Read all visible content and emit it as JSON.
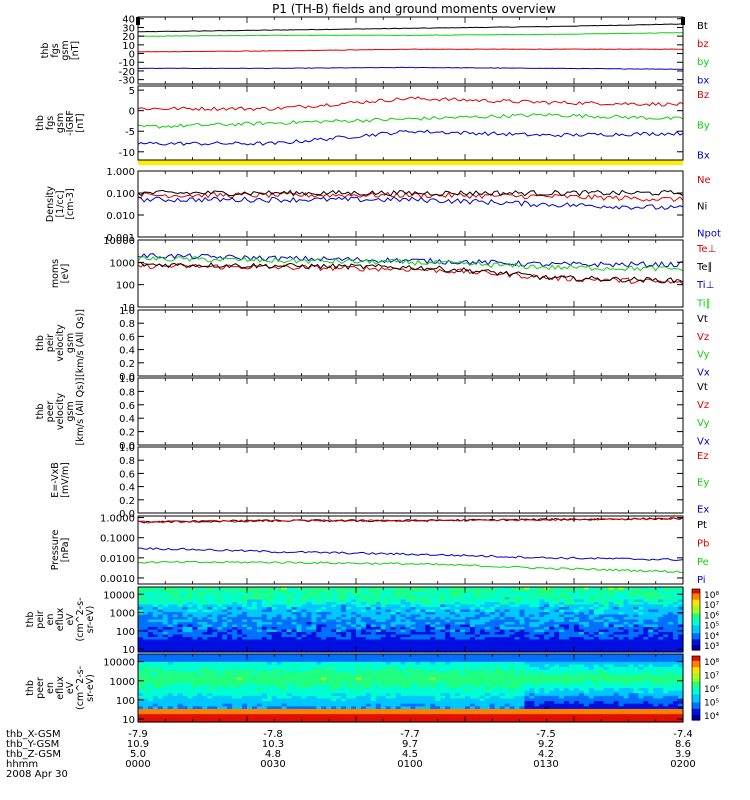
{
  "title": "P1 (TH-B) fields and ground moments overview",
  "colors": {
    "black": "#000000",
    "red": "#e00000",
    "green": "#10d010",
    "blue": "#0000cc",
    "yellow": "#ffee00"
  },
  "panels": [
    {
      "id": "fgs-gsm",
      "ylabel": [
        "thb",
        "fgs",
        "gsm",
        "[nT]"
      ],
      "type": "line",
      "scale": "linear",
      "ylim": [
        -35,
        42
      ],
      "ticks": [
        "40",
        "30",
        "20",
        "10",
        "0",
        "-10",
        "-20",
        "-30"
      ],
      "tick_values": [
        40,
        30,
        20,
        10,
        0,
        -10,
        -20,
        -30
      ],
      "legend": [
        {
          "text": "Bt",
          "color": "black"
        },
        {
          "text": "bz",
          "color": "red"
        },
        {
          "text": "by",
          "color": "green"
        },
        {
          "text": "bx",
          "color": "blue"
        }
      ]
    },
    {
      "id": "fgs-gsm-dif",
      "ylabel": [
        "thb",
        "fgs",
        "gsm",
        "-IGRF",
        "[nT]"
      ],
      "type": "line",
      "scale": "linear",
      "ylim": [
        -12,
        6
      ],
      "ticks": [
        "5",
        "0",
        "-5",
        "-10"
      ],
      "tick_values": [
        5,
        0,
        -5,
        -10
      ],
      "legend": [
        {
          "text": "Bz",
          "color": "red"
        },
        {
          "text": "By",
          "color": "green"
        },
        {
          "text": "Bx",
          "color": "blue"
        }
      ]
    },
    {
      "id": "density",
      "ylabel": [
        "Density",
        "[1/cc]",
        "[cm-3]"
      ],
      "type": "line",
      "scale": "log",
      "ylim": [
        0.001,
        1.0
      ],
      "ticks": [
        "1.000",
        "0.100",
        "0.010",
        "0.001"
      ],
      "tick_values": [
        1.0,
        0.1,
        0.01,
        0.001
      ],
      "legend": [
        {
          "text": "Ne",
          "color": "red"
        },
        {
          "text": "Ni",
          "color": "black"
        },
        {
          "text": "Npot",
          "color": "blue"
        }
      ]
    },
    {
      "id": "temp",
      "ylabel": [
        "moms",
        "[eV]"
      ],
      "type": "line",
      "scale": "log",
      "ylim": [
        10,
        10000
      ],
      "ticks": [
        "10000",
        "1000",
        "100",
        "10"
      ],
      "tick_values": [
        10000,
        1000,
        100,
        10
      ],
      "legend": [
        {
          "text": "Te⊥",
          "color": "red"
        },
        {
          "text": "Te∥",
          "color": "black"
        },
        {
          "text": "Ti⊥",
          "color": "blue"
        },
        {
          "text": "Ti∥",
          "color": "green"
        }
      ]
    },
    {
      "id": "peir-vel",
      "ylabel": [
        "thb",
        "peir",
        "velocity",
        "gsm",
        "[km/s (All Qs)]"
      ],
      "type": "empty",
      "scale": "linear",
      "ylim": [
        0,
        1
      ],
      "ticks": [
        "1.0",
        "0.8",
        "0.6",
        "0.4",
        "0.2",
        "0.0"
      ],
      "tick_values": [
        1.0,
        0.8,
        0.6,
        0.4,
        0.2,
        0.0
      ],
      "legend": [
        {
          "text": "Vt",
          "color": "black"
        },
        {
          "text": "Vz",
          "color": "red"
        },
        {
          "text": "Vy",
          "color": "green"
        },
        {
          "text": "Vx",
          "color": "blue"
        }
      ]
    },
    {
      "id": "peer-vel",
      "ylabel": [
        "thb",
        "peer",
        "velocity",
        "gsm",
        "[km/s (All Qs)]"
      ],
      "type": "empty",
      "scale": "linear",
      "ylim": [
        0,
        1
      ],
      "ticks": [
        "1.0",
        "0.8",
        "0.6",
        "0.4",
        "0.2",
        "0.0"
      ],
      "tick_values": [
        1.0,
        0.8,
        0.6,
        0.4,
        0.2,
        0.0
      ],
      "legend": [
        {
          "text": "Vt",
          "color": "black"
        },
        {
          "text": "Vz",
          "color": "red"
        },
        {
          "text": "Vy",
          "color": "green"
        },
        {
          "text": "Vx",
          "color": "blue"
        }
      ]
    },
    {
      "id": "evxb",
      "ylabel": [
        "E=-VxB",
        "[mV/m]"
      ],
      "type": "empty",
      "scale": "linear",
      "ylim": [
        0,
        1
      ],
      "ticks": [
        "1.0",
        "0.8",
        "0.6",
        "0.4",
        "0.2",
        "0.0"
      ],
      "tick_values": [
        1.0,
        0.8,
        0.6,
        0.4,
        0.2,
        0.0
      ],
      "legend": [
        {
          "text": "Ez",
          "color": "red"
        },
        {
          "text": "Ey",
          "color": "green"
        },
        {
          "text": "Ex",
          "color": "blue"
        }
      ]
    },
    {
      "id": "pressure",
      "ylabel": [
        "Pressure",
        "[nPa]"
      ],
      "type": "line",
      "scale": "log",
      "ylim": [
        0.0005,
        1.2
      ],
      "ticks": [
        "1.0000",
        "0.1000",
        "0.0100",
        "0.0010",
        "0.0001"
      ],
      "tick_values": [
        1.0,
        0.1,
        0.01,
        0.001,
        0.0001
      ],
      "legend": [
        {
          "text": "Pt",
          "color": "black"
        },
        {
          "text": "Pb",
          "color": "red"
        },
        {
          "text": "Pe",
          "color": "green"
        },
        {
          "text": "Pi",
          "color": "blue"
        }
      ]
    },
    {
      "id": "peir-en",
      "ylabel": [
        "thb",
        "peir",
        "en",
        "eflux",
        "eV",
        "(cm^2-s-",
        "sr-eV)"
      ],
      "type": "spectrogram",
      "scale": "log",
      "ylim": [
        7,
        25000
      ],
      "ticks": [
        "10000",
        "1000",
        "100",
        "10"
      ],
      "tick_values": [
        10000,
        1000,
        100,
        10
      ],
      "colorbar_ticks": [
        "10⁸",
        "10⁷",
        "10⁶",
        "10⁵",
        "10⁴",
        "10³"
      ]
    },
    {
      "id": "peer-en",
      "ylabel": [
        "thb",
        "peer",
        "en",
        "eflux",
        "eV",
        "(cm^2-s-",
        "sr-eV)"
      ],
      "type": "spectrogram",
      "scale": "log",
      "ylim": [
        7,
        25000
      ],
      "ticks": [
        "10000",
        "1000",
        "100",
        "10"
      ],
      "tick_values": [
        10000,
        1000,
        100,
        10
      ],
      "colorbar_ticks": [
        "10⁸",
        "10⁷",
        "10⁶",
        "10⁵",
        "10⁴"
      ]
    }
  ],
  "ephemeris": {
    "rows": [
      {
        "label": "thb_X-GSM",
        "values": [
          "-7.9",
          "-7.8",
          "-7.7",
          "-7.5",
          "-7.4"
        ]
      },
      {
        "label": "thb_Y-GSM",
        "values": [
          "10.9",
          "10.3",
          "9.7",
          "9.2",
          "8.6"
        ]
      },
      {
        "label": "thb_Z-GSM",
        "values": [
          "5.0",
          "4.8",
          "4.5",
          "4.2",
          "3.9"
        ]
      },
      {
        "label": "hhmm",
        "values": [
          "0000",
          "0030",
          "0100",
          "0130",
          "0200"
        ]
      }
    ],
    "date": "2008 Apr 30"
  },
  "chart_data": [
    {
      "type": "line",
      "title": "P1 (TH-B) fields and ground moments overview",
      "ylabel": "thb fgs gsm [nT]",
      "x": [
        "0000",
        "0030",
        "0100",
        "0130",
        "0200"
      ],
      "series": [
        {
          "name": "Bt",
          "values": [
            25,
            27,
            29,
            31,
            34
          ]
        },
        {
          "name": "bz",
          "values": [
            2,
            3,
            5,
            5,
            5
          ]
        },
        {
          "name": "by",
          "values": [
            20,
            21,
            21,
            22,
            24
          ]
        },
        {
          "name": "bx",
          "values": [
            -17,
            -17,
            -16,
            -17,
            -18
          ]
        }
      ],
      "ylim": [
        -35,
        42
      ]
    },
    {
      "type": "line",
      "ylabel": "thb fgs gsm-IGRF [nT]",
      "x": [
        "0000",
        "0030",
        "0100",
        "0130",
        "0200"
      ],
      "series": [
        {
          "name": "Bz",
          "values": [
            0.5,
            0.5,
            3,
            2,
            1.5
          ]
        },
        {
          "name": "By",
          "values": [
            -4,
            -3,
            -2,
            -1,
            -2
          ]
        },
        {
          "name": "Bx",
          "values": [
            -8,
            -8,
            -5,
            -6,
            -5.5
          ]
        }
      ],
      "ylim": [
        -12,
        6
      ]
    },
    {
      "type": "line",
      "ylabel": "Density [1/cc] [cm-3]",
      "scale": "log",
      "x": [
        "0000",
        "0030",
        "0100",
        "0130",
        "0200"
      ],
      "series": [
        {
          "name": "Ne",
          "values": [
            0.08,
            0.08,
            0.08,
            0.07,
            0.05
          ]
        },
        {
          "name": "Ni",
          "values": [
            0.1,
            0.1,
            0.1,
            0.1,
            0.1
          ]
        },
        {
          "name": "Npot",
          "values": [
            0.05,
            0.05,
            0.05,
            0.03,
            0.02
          ]
        }
      ],
      "ylim": [
        0.001,
        1.0
      ]
    },
    {
      "type": "line",
      "ylabel": "moms [eV]",
      "scale": "log",
      "x": [
        "0000",
        "0030",
        "0100",
        "0130",
        "0200"
      ],
      "series": [
        {
          "name": "Te⊥",
          "values": [
            700,
            600,
            500,
            200,
            120
          ]
        },
        {
          "name": "Te∥",
          "values": [
            800,
            700,
            600,
            200,
            150
          ]
        },
        {
          "name": "Ti⊥",
          "values": [
            2000,
            1500,
            1200,
            800,
            800
          ]
        },
        {
          "name": "Ti∥",
          "values": [
            1500,
            1200,
            1000,
            600,
            500
          ]
        }
      ],
      "ylim": [
        10,
        10000
      ]
    },
    {
      "type": "line",
      "ylabel": "Pressure [nPa]",
      "scale": "log",
      "x": [
        "0000",
        "0030",
        "0100",
        "0130",
        "0200"
      ],
      "series": [
        {
          "name": "Pt",
          "values": [
            0.6,
            0.7,
            0.7,
            0.8,
            0.9
          ]
        },
        {
          "name": "Pb",
          "values": [
            0.6,
            0.7,
            0.7,
            0.8,
            0.9
          ]
        },
        {
          "name": "Pe",
          "values": [
            0.006,
            0.006,
            0.005,
            0.003,
            0.002
          ]
        },
        {
          "name": "Pi",
          "values": [
            0.03,
            0.02,
            0.015,
            0.01,
            0.008
          ]
        }
      ],
      "ylim": [
        0.0005,
        1.2
      ]
    },
    {
      "type": "heatmap",
      "ylabel": "thb peir en eflux eV (cm^2-s-sr-eV)",
      "x": [
        "0000",
        "0030",
        "0100",
        "0130",
        "0200"
      ],
      "y_range": [
        7,
        25000
      ],
      "colorbar_range": [
        "10³",
        "10⁸"
      ]
    },
    {
      "type": "heatmap",
      "ylabel": "thb peer en eflux eV (cm^2-s-sr-eV)",
      "x": [
        "0000",
        "0030",
        "0100",
        "0130",
        "0200"
      ],
      "y_range": [
        7,
        25000
      ],
      "colorbar_range": [
        "10⁴",
        "10⁸"
      ]
    }
  ]
}
